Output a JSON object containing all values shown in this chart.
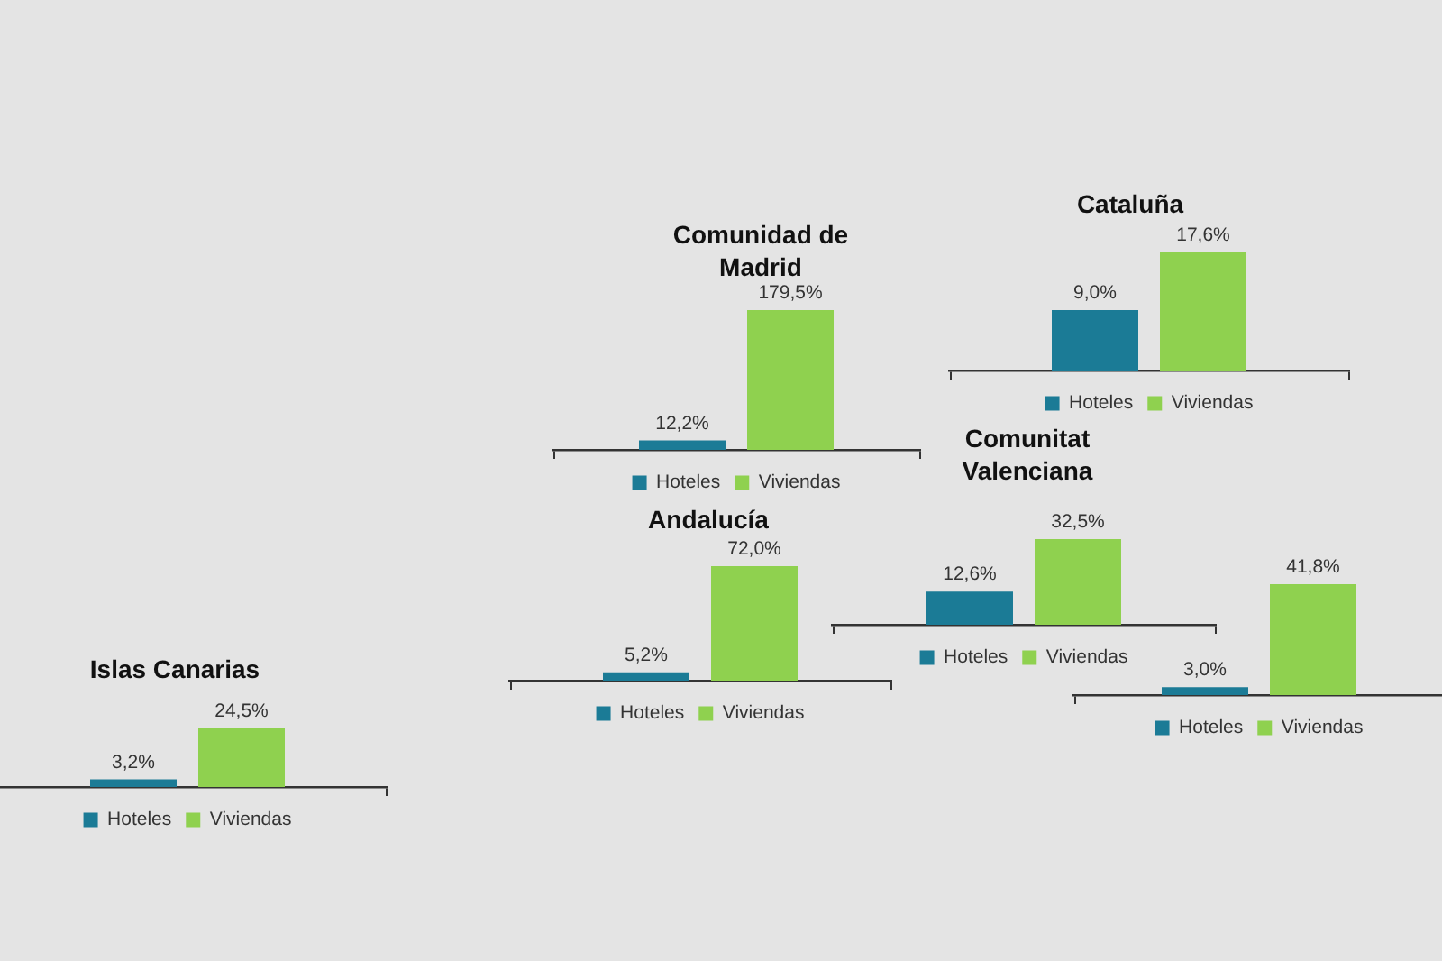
{
  "chart_data": [
    {
      "type": "bar",
      "title": "Comunidad de Madrid",
      "categories": [
        null
      ],
      "series": [
        {
          "name": "Hoteles",
          "color": "#1b7b96",
          "values": [
            12.2
          ],
          "value_labels": [
            "12,2%"
          ]
        },
        {
          "name": "Viviendas",
          "color": "#8fd14f",
          "values": [
            179.5
          ],
          "value_labels": [
            "179,5%"
          ]
        }
      ],
      "legend": "bottom",
      "tick_labels": false
    },
    {
      "type": "bar",
      "title": "Cataluña",
      "categories": [
        null
      ],
      "series": [
        {
          "name": "Hoteles",
          "color": "#1b7b96",
          "values": [
            9.0
          ],
          "value_labels": [
            "9,0%"
          ]
        },
        {
          "name": "Viviendas",
          "color": "#8fd14f",
          "values": [
            17.6
          ],
          "value_labels": [
            "17,6%"
          ]
        }
      ],
      "legend": "bottom",
      "tick_labels": false
    },
    {
      "type": "bar",
      "title": "Andalucía",
      "categories": [
        null
      ],
      "series": [
        {
          "name": "Hoteles",
          "color": "#1b7b96",
          "values": [
            5.2
          ],
          "value_labels": [
            "5,2%"
          ]
        },
        {
          "name": "Viviendas",
          "color": "#8fd14f",
          "values": [
            72.0
          ],
          "value_labels": [
            "72,0%"
          ]
        }
      ],
      "legend": "bottom",
      "tick_labels": false
    },
    {
      "type": "bar",
      "title": "Comunitat Valenciana",
      "categories": [
        null
      ],
      "series": [
        {
          "name": "Hoteles",
          "color": "#1b7b96",
          "values": [
            12.6
          ],
          "value_labels": [
            "12,6%"
          ]
        },
        {
          "name": "Viviendas",
          "color": "#8fd14f",
          "values": [
            32.5
          ],
          "value_labels": [
            "32,5%"
          ]
        }
      ],
      "legend": "bottom",
      "tick_labels": false
    },
    {
      "type": "bar",
      "title": "Islas Canarias",
      "categories": [
        null
      ],
      "series": [
        {
          "name": "Hoteles",
          "color": "#1b7b96",
          "values": [
            3.2
          ],
          "value_labels": [
            "3,2%"
          ]
        },
        {
          "name": "Viviendas",
          "color": "#8fd14f",
          "values": [
            24.5
          ],
          "value_labels": [
            "24,5%"
          ]
        }
      ],
      "legend": "bottom",
      "tick_labels": false
    },
    {
      "type": "bar",
      "categories": [
        null
      ],
      "series": [
        {
          "name": "Hoteles",
          "color": "#1b7b96",
          "values": [
            3.0
          ],
          "value_labels": [
            "3,0%"
          ]
        },
        {
          "name": "Viviendas",
          "color": "#8fd14f",
          "values": [
            41.8
          ],
          "value_labels": [
            "41,8%"
          ]
        }
      ],
      "legend": "bottom",
      "tick_labels": false
    }
  ]
}
